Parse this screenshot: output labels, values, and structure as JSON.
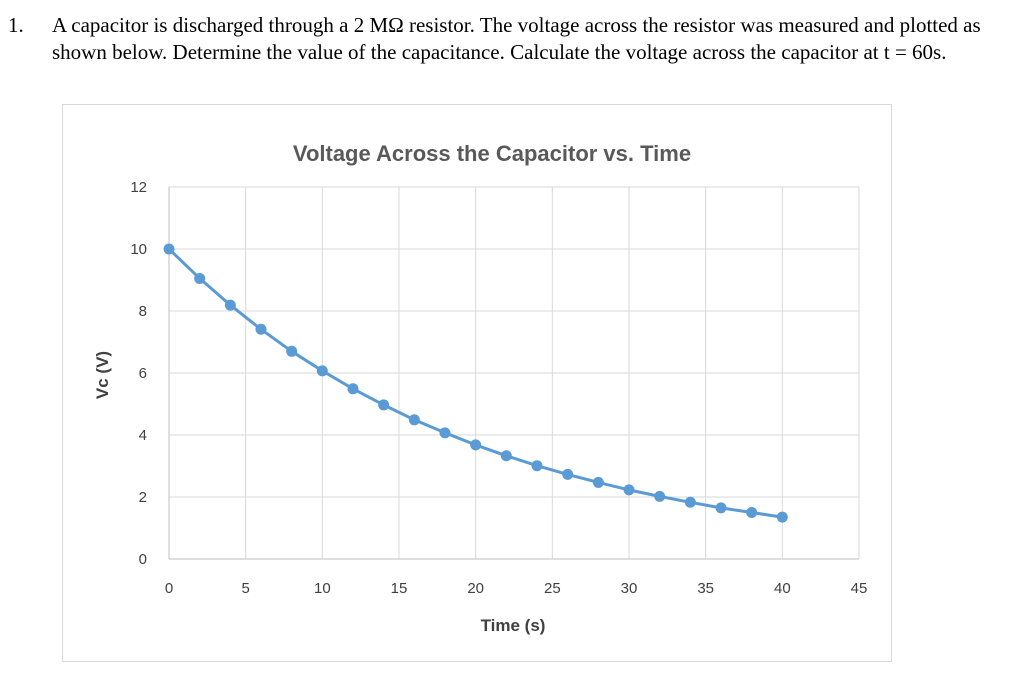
{
  "problem": {
    "number": "1.",
    "text": "A capacitor is discharged through a 2 MΩ resistor.  The voltage across the resistor was measured and plotted as shown below.  Determine the value of the capacitance.  Calculate the voltage across the capacitor at t = 60s."
  },
  "colors": {
    "series": "#5b9bd5",
    "grid": "#d9d9d9",
    "text": "#404040",
    "title": "#595959"
  },
  "chart_data": {
    "type": "line",
    "title": "Voltage Across the Capacitor vs. Time",
    "xlabel": "Time (s)",
    "ylabel": "Vc (V)",
    "xlim": [
      0,
      45
    ],
    "ylim": [
      0,
      12
    ],
    "xticks": [
      0,
      5,
      10,
      15,
      20,
      25,
      30,
      35,
      40,
      45
    ],
    "yticks": [
      0,
      2,
      4,
      6,
      8,
      10,
      12
    ],
    "grid": true,
    "legend": "none",
    "series": [
      {
        "name": "Vc",
        "x": [
          0,
          2,
          4,
          6,
          8,
          10,
          12,
          14,
          16,
          18,
          20,
          22,
          24,
          26,
          28,
          30,
          32,
          34,
          36,
          38,
          40
        ],
        "y": [
          10,
          9.05,
          8.19,
          7.41,
          6.7,
          6.07,
          5.49,
          4.97,
          4.49,
          4.07,
          3.68,
          3.33,
          3.01,
          2.73,
          2.47,
          2.23,
          2.02,
          1.83,
          1.65,
          1.5,
          1.35
        ]
      }
    ]
  }
}
